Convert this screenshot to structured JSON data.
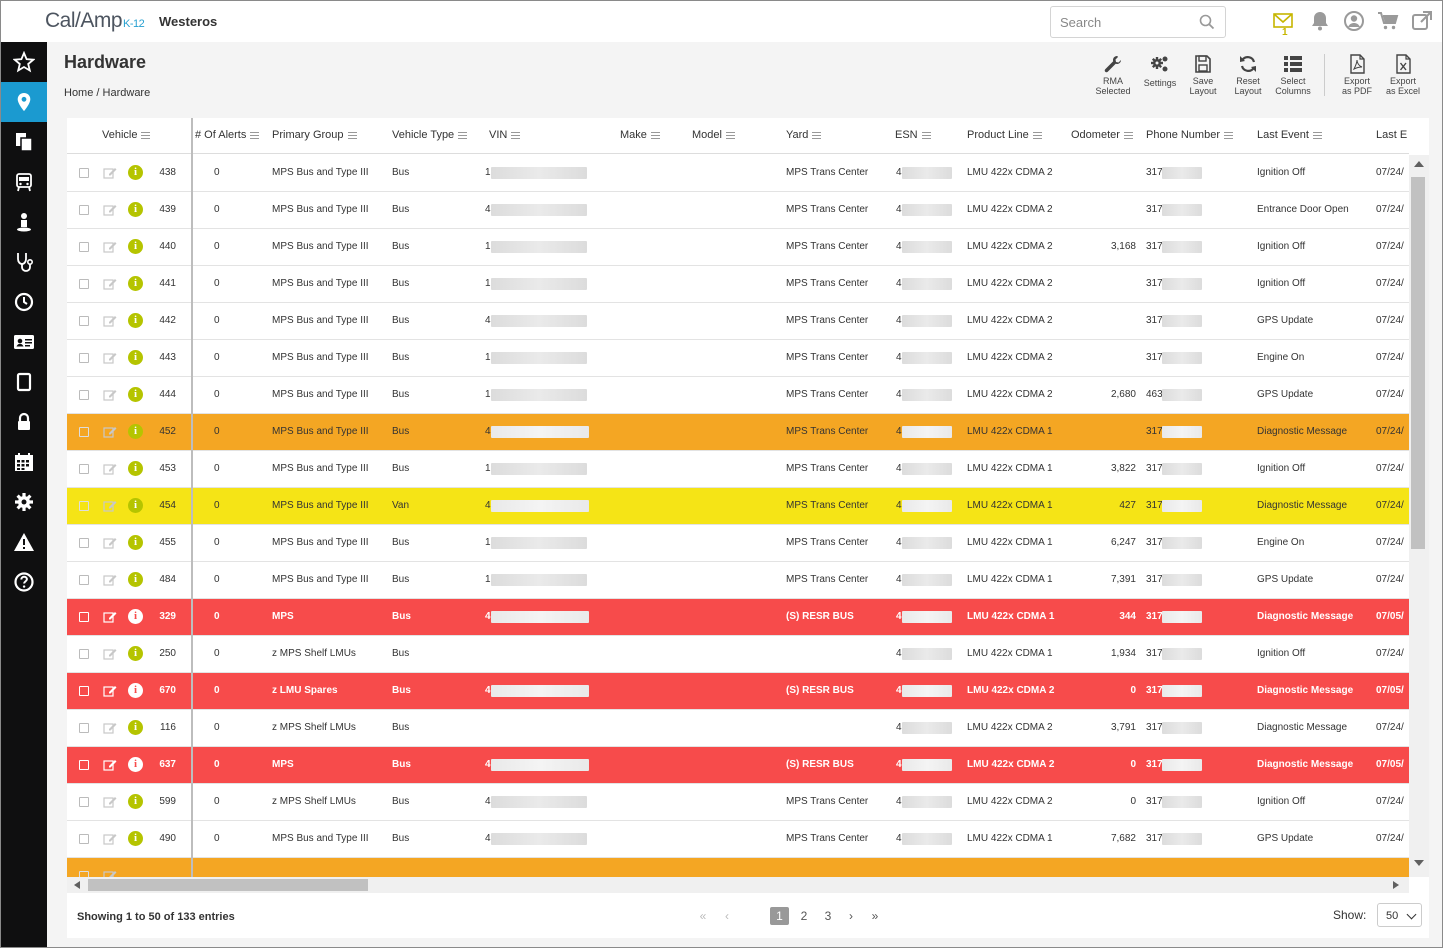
{
  "app": {
    "logo_main": "Cal/Amp",
    "logo_sub": "K-12",
    "tenant": "Westeros"
  },
  "search": {
    "placeholder": "Search"
  },
  "topbar": {
    "mail_count": "1",
    "icons": [
      "mail-icon",
      "bell-icon",
      "user-icon",
      "cart-icon",
      "external-link-icon"
    ]
  },
  "sidebar": {
    "icons": [
      "star-icon",
      "map-pin-icon",
      "documents-icon",
      "bus-icon",
      "person-icon",
      "stethoscope-icon",
      "clock-icon",
      "id-card-icon",
      "tablet-icon",
      "lock-icon",
      "calendar-icon",
      "gear-icon",
      "warning-icon",
      "help-icon"
    ],
    "active_index": 1
  },
  "page": {
    "title": "Hardware",
    "breadcrumb_home": "Home",
    "breadcrumb_sep": "/",
    "breadcrumb_current": "Hardware"
  },
  "toolbar": [
    {
      "line1": "RMA",
      "line2": "Selected",
      "icon": "wrench-icon"
    },
    {
      "line1": "Settings",
      "line2": "",
      "icon": "gears-icon"
    },
    {
      "line1": "Save",
      "line2": "Layout",
      "icon": "save-icon"
    },
    {
      "line1": "Reset",
      "line2": "Layout",
      "icon": "refresh-icon"
    },
    {
      "line1": "Select",
      "line2": "Columns",
      "icon": "columns-icon"
    },
    {
      "line1": "Export",
      "line2": "as PDF",
      "icon": "pdf-icon"
    },
    {
      "line1": "Export",
      "line2": "as Excel",
      "icon": "excel-icon"
    }
  ],
  "columns": [
    "Vehicle",
    "# Of Alerts",
    "Primary Group",
    "Vehicle Type",
    "VIN",
    "Make",
    "Model",
    "Yard",
    "ESN",
    "Product Line",
    "Odometer",
    "Phone Number",
    "Last Event",
    "Last E"
  ],
  "rows": [
    {
      "vehicle": "438",
      "alerts": "0",
      "group": "MPS Bus and Type III",
      "type": "Bus",
      "vin": "1",
      "yard": "MPS Trans Center",
      "esn": "4",
      "product": "LMU 422x CDMA 2",
      "odometer": "",
      "phone": "317",
      "event": "Ignition Off",
      "last": "07/24/",
      "status": "normal"
    },
    {
      "vehicle": "439",
      "alerts": "0",
      "group": "MPS Bus and Type III",
      "type": "Bus",
      "vin": "4",
      "yard": "MPS Trans Center",
      "esn": "4",
      "product": "LMU 422x CDMA 2",
      "odometer": "",
      "phone": "317",
      "event": "Entrance Door Open",
      "last": "07/24/",
      "status": "normal"
    },
    {
      "vehicle": "440",
      "alerts": "0",
      "group": "MPS Bus and Type III",
      "type": "Bus",
      "vin": "1",
      "yard": "MPS Trans Center",
      "esn": "4",
      "product": "LMU 422x CDMA 2",
      "odometer": "3,168",
      "phone": "317",
      "event": "Ignition Off",
      "last": "07/24/",
      "status": "normal"
    },
    {
      "vehicle": "441",
      "alerts": "0",
      "group": "MPS Bus and Type III",
      "type": "Bus",
      "vin": "1",
      "yard": "MPS Trans Center",
      "esn": "4",
      "product": "LMU 422x CDMA 2",
      "odometer": "",
      "phone": "317",
      "event": "Ignition Off",
      "last": "07/24/",
      "status": "normal"
    },
    {
      "vehicle": "442",
      "alerts": "0",
      "group": "MPS Bus and Type III",
      "type": "Bus",
      "vin": "4",
      "yard": "MPS Trans Center",
      "esn": "4",
      "product": "LMU 422x CDMA 2",
      "odometer": "",
      "phone": "317",
      "event": "GPS Update",
      "last": "07/24/",
      "status": "normal"
    },
    {
      "vehicle": "443",
      "alerts": "0",
      "group": "MPS Bus and Type III",
      "type": "Bus",
      "vin": "1",
      "yard": "MPS Trans Center",
      "esn": "4",
      "product": "LMU 422x CDMA 2",
      "odometer": "",
      "phone": "317",
      "event": "Engine On",
      "last": "07/24/",
      "status": "normal"
    },
    {
      "vehicle": "444",
      "alerts": "0",
      "group": "MPS Bus and Type III",
      "type": "Bus",
      "vin": "1",
      "yard": "MPS Trans Center",
      "esn": "4",
      "product": "LMU 422x CDMA 2",
      "odometer": "2,680",
      "phone": "463",
      "event": "GPS Update",
      "last": "07/24/",
      "status": "normal"
    },
    {
      "vehicle": "452",
      "alerts": "0",
      "group": "MPS Bus and Type III",
      "type": "Bus",
      "vin": "4",
      "yard": "MPS Trans Center",
      "esn": "4",
      "product": "LMU 422x CDMA 1",
      "odometer": "",
      "phone": "317",
      "event": "Diagnostic Message",
      "last": "07/24/",
      "status": "orange"
    },
    {
      "vehicle": "453",
      "alerts": "0",
      "group": "MPS Bus and Type III",
      "type": "Bus",
      "vin": "1",
      "yard": "MPS Trans Center",
      "esn": "4",
      "product": "LMU 422x CDMA 1",
      "odometer": "3,822",
      "phone": "317",
      "event": "Ignition Off",
      "last": "07/24/",
      "status": "normal"
    },
    {
      "vehicle": "454",
      "alerts": "0",
      "group": "MPS Bus and Type III",
      "type": "Van",
      "vin": "4",
      "yard": "MPS Trans Center",
      "esn": "4",
      "product": "LMU 422x CDMA 1",
      "odometer": "427",
      "phone": "317",
      "event": "Diagnostic Message",
      "last": "07/24/",
      "status": "yellow"
    },
    {
      "vehicle": "455",
      "alerts": "0",
      "group": "MPS Bus and Type III",
      "type": "Bus",
      "vin": "1",
      "yard": "MPS Trans Center",
      "esn": "4",
      "product": "LMU 422x CDMA 1",
      "odometer": "6,247",
      "phone": "317",
      "event": "Engine On",
      "last": "07/24/",
      "status": "normal"
    },
    {
      "vehicle": "484",
      "alerts": "0",
      "group": "MPS Bus and Type III",
      "type": "Bus",
      "vin": "1",
      "yard": "MPS Trans Center",
      "esn": "4",
      "product": "LMU 422x CDMA 1",
      "odometer": "7,391",
      "phone": "317",
      "event": "GPS Update",
      "last": "07/24/",
      "status": "normal"
    },
    {
      "vehicle": "329",
      "alerts": "0",
      "group": "MPS",
      "type": "Bus",
      "vin": "4",
      "yard": "(S) RESR BUS",
      "esn": "4",
      "product": "LMU 422x CDMA 1",
      "odometer": "344",
      "phone": "317",
      "event": "Diagnostic Message",
      "last": "07/05/",
      "status": "red"
    },
    {
      "vehicle": "250",
      "alerts": "0",
      "group": "z MPS Shelf LMUs",
      "type": "Bus",
      "vin": "",
      "yard": "",
      "esn": "4",
      "product": "LMU 422x CDMA 1",
      "odometer": "1,934",
      "phone": "317",
      "event": "Ignition Off",
      "last": "07/24/",
      "status": "normal"
    },
    {
      "vehicle": "670",
      "alerts": "0",
      "group": "z LMU Spares",
      "type": "Bus",
      "vin": "4",
      "yard": "(S) RESR BUS",
      "esn": "4",
      "product": "LMU 422x CDMA 2",
      "odometer": "0",
      "phone": "317",
      "event": "Diagnostic Message",
      "last": "07/05/",
      "status": "red"
    },
    {
      "vehicle": "116",
      "alerts": "0",
      "group": "z MPS Shelf LMUs",
      "type": "Bus",
      "vin": "",
      "yard": "",
      "esn": "4",
      "product": "LMU 422x CDMA 2",
      "odometer": "3,791",
      "phone": "317",
      "event": "Diagnostic Message",
      "last": "07/24/",
      "status": "normal"
    },
    {
      "vehicle": "637",
      "alerts": "0",
      "group": "MPS",
      "type": "Bus",
      "vin": "4",
      "yard": "(S) RESR BUS",
      "esn": "4",
      "product": "LMU 422x CDMA 2",
      "odometer": "0",
      "phone": "317",
      "event": "Diagnostic Message",
      "last": "07/05/",
      "status": "red"
    },
    {
      "vehicle": "599",
      "alerts": "0",
      "group": "z MPS Shelf LMUs",
      "type": "Bus",
      "vin": "4",
      "yard": "MPS Trans Center",
      "esn": "4",
      "product": "LMU 422x CDMA 2",
      "odometer": "0",
      "phone": "317",
      "event": "Ignition Off",
      "last": "07/24/",
      "status": "normal"
    },
    {
      "vehicle": "490",
      "alerts": "0",
      "group": "MPS Bus and Type III",
      "type": "Bus",
      "vin": "4",
      "yard": "MPS Trans Center",
      "esn": "4",
      "product": "LMU 422x CDMA 1",
      "odometer": "7,682",
      "phone": "317",
      "event": "GPS Update",
      "last": "07/24/",
      "status": "normal"
    },
    {
      "vehicle": "",
      "alerts": "",
      "group": "",
      "type": "",
      "vin": "",
      "yard": "",
      "esn": "",
      "product": "",
      "odometer": "",
      "phone": "",
      "event": "",
      "last": "",
      "status": "orange"
    }
  ],
  "footer": {
    "entries": "Showing 1 to 50 of 133 entries",
    "pages": [
      "1",
      "2",
      "3"
    ],
    "current_page": "1",
    "first": "«",
    "prev": "‹",
    "next": "›",
    "last": "»",
    "show_label": "Show:",
    "show_value": "50"
  },
  "colors": {
    "sidebar": "#0f0f10",
    "active": "#1b9ad0",
    "orange": "#f4a623",
    "yellow": "#f5e416",
    "red": "#f74b4b",
    "info": "#b5c400"
  }
}
